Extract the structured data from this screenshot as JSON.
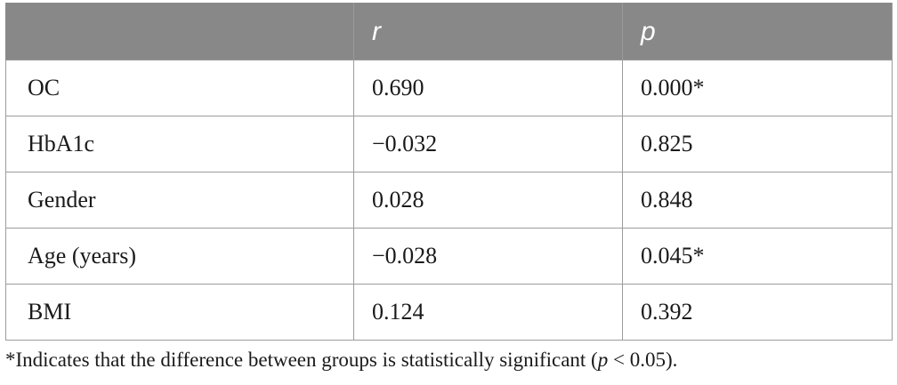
{
  "table": {
    "headers": [
      "",
      "r",
      "p"
    ],
    "rows": [
      {
        "label": "OC",
        "r": "0.690",
        "p": "0.000*"
      },
      {
        "label": "HbA1c",
        "r": "−0.032",
        "p": "0.825"
      },
      {
        "label": "Gender",
        "r": "0.028",
        "p": "0.848"
      },
      {
        "label": "Age (years)",
        "r": "−0.028",
        "p": "0.045*"
      },
      {
        "label": "BMI",
        "r": "0.124",
        "p": "0.392"
      }
    ]
  },
  "footnote": {
    "prefix": "*Indicates that the difference between groups is statistically significant (",
    "var": "p",
    "suffix": " < 0.05)."
  }
}
